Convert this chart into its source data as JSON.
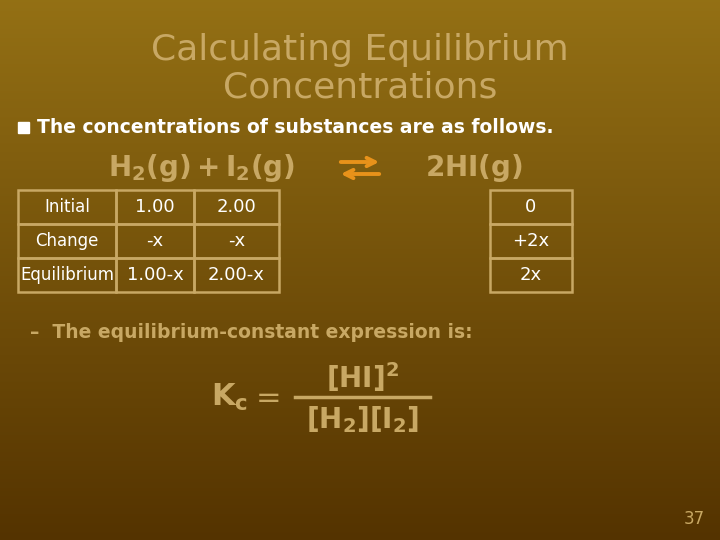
{
  "title_line1": "Calculating Equilibrium",
  "title_line2": "Concentrations",
  "title_color": "#c8a864",
  "bg_color_top": "#7a5200",
  "bg_color_mid": "#8b6200",
  "bg_color_bottom": "#5a3800",
  "bullet_text": "The concentrations of substances are as follows.",
  "bullet_color": "#ffffff",
  "bullet_marker_color": "#ffffff",
  "arrow_color": "#e8921a",
  "table_rows": [
    [
      "Initial",
      "1.00",
      "2.00",
      "0"
    ],
    [
      "Change",
      "-x",
      "-x",
      "+2x"
    ],
    [
      "Equilibrium",
      "1.00-x",
      "2.00-x",
      "2x"
    ]
  ],
  "table_text_color": "#ffffff",
  "table_border_color": "#c8a864",
  "dash_text": "–  The equilibrium-constant expression is:",
  "dash_text_color": "#c8a864",
  "page_number": "37",
  "page_number_color": "#c8a864"
}
